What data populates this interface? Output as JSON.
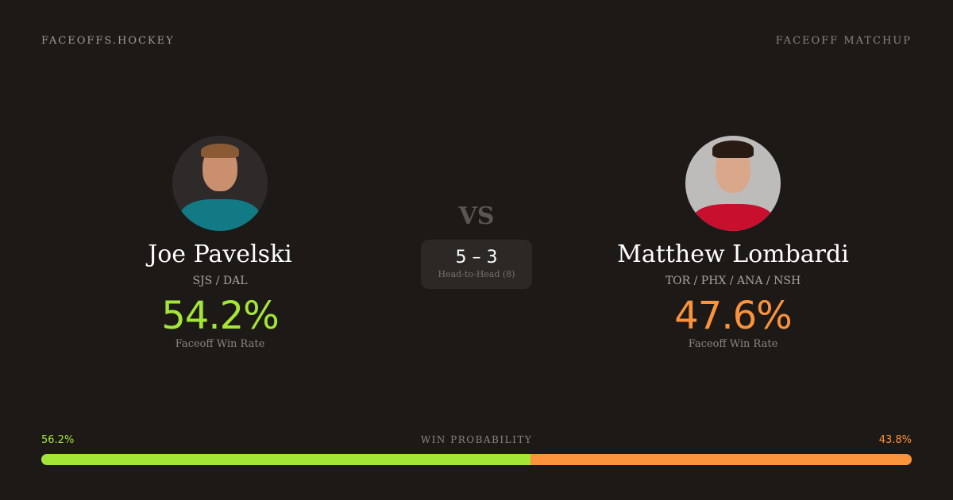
{
  "header": {
    "brand": "FACEOFFS.HOCKEY",
    "page_type": "FACEOFF MATCHUP"
  },
  "players": [
    {
      "name": "Joe Pavelski",
      "teams": "SJS / DAL",
      "win_rate": "54.2%",
      "win_rate_label": "Faceoff Win Rate",
      "color": "#a3e635"
    },
    {
      "name": "Matthew Lombardi",
      "teams": "TOR / PHX / ANA / NSH",
      "win_rate": "47.6%",
      "win_rate_label": "Faceoff Win Rate",
      "color": "#fb923c"
    }
  ],
  "vs": "VS",
  "head_to_head": {
    "score": "5 – 3",
    "label": "Head-to-Head (8)"
  },
  "win_probability": {
    "label": "WIN PROBABILITY",
    "left": "56.2%",
    "right": "43.8%",
    "left_value": 56.2,
    "right_value": 43.8
  }
}
